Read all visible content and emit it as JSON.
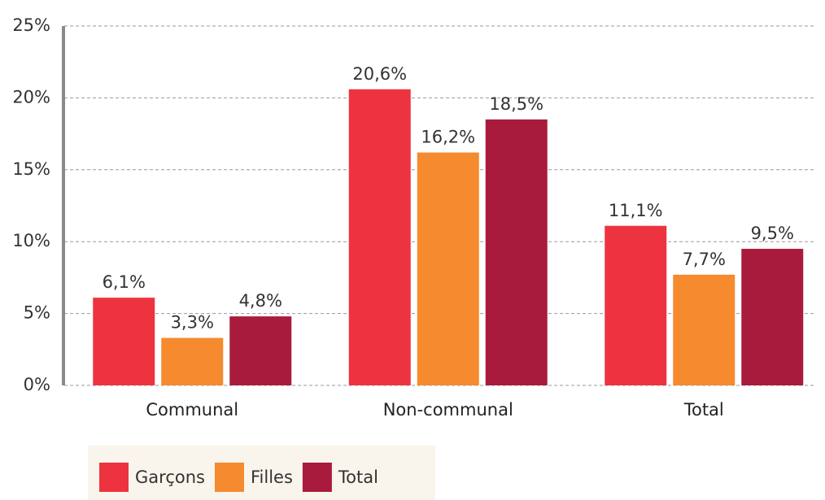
{
  "chart_data": {
    "type": "bar",
    "categories": [
      "Communal",
      "Non-communal",
      "Total"
    ],
    "series": [
      {
        "name": "Garçons",
        "color": "#ee3340",
        "values": [
          6.1,
          20.6,
          11.1
        ],
        "value_labels": [
          "6,1%",
          "20,6%",
          "11,1%"
        ]
      },
      {
        "name": "Filles",
        "color": "#f58a2f",
        "values": [
          3.3,
          16.2,
          7.7
        ],
        "value_labels": [
          "3,3%",
          "16,2%",
          "7,7%"
        ]
      },
      {
        "name": "Total",
        "color": "#a91b3c",
        "values": [
          4.8,
          18.5,
          9.5
        ],
        "value_labels": [
          "4,8%",
          "18,5%",
          "9,5%"
        ]
      }
    ],
    "ylim": [
      0,
      25
    ],
    "yticks": [
      {
        "value": 0,
        "label": "0%"
      },
      {
        "value": 5,
        "label": "5%"
      },
      {
        "value": 10,
        "label": "10%"
      },
      {
        "value": 15,
        "label": "15%"
      },
      {
        "value": 20,
        "label": "20%"
      },
      {
        "value": 25,
        "label": "25%"
      }
    ],
    "grid": true,
    "legend": "bottom-left"
  }
}
